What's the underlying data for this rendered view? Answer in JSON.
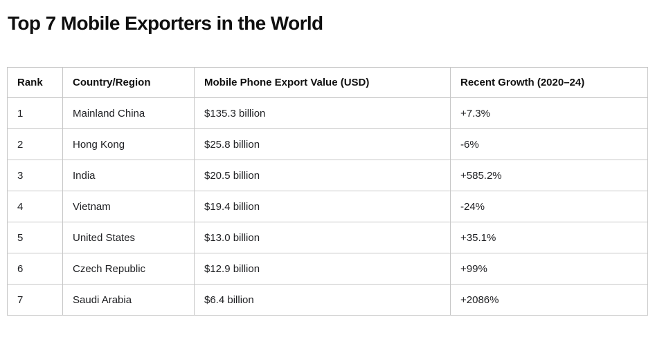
{
  "page": {
    "title": "Top 7 Mobile Exporters in the World",
    "background_color": "#ffffff",
    "title_color": "#0f0f0f"
  },
  "table": {
    "border_color": "#c7c7c7",
    "header_text_color": "#111111",
    "body_text_color": "#202124",
    "headers": [
      "Rank",
      "Country/Region",
      "Mobile Phone Export Value (USD)",
      "Recent Growth (2020–24)"
    ],
    "rows": [
      {
        "rank": "1",
        "country": "Mainland China",
        "export_value": "$135.3 billion",
        "growth": "+7.3%"
      },
      {
        "rank": "2",
        "country": "Hong Kong",
        "export_value": "$25.8 billion",
        "growth": "-6%"
      },
      {
        "rank": "3",
        "country": "India",
        "export_value": "$20.5 billion",
        "growth": "+585.2%"
      },
      {
        "rank": "4",
        "country": "Vietnam",
        "export_value": "$19.4 billion",
        "growth": "-24%"
      },
      {
        "rank": "5",
        "country": "United States",
        "export_value": "$13.0 billion",
        "growth": "+35.1%"
      },
      {
        "rank": "6",
        "country": "Czech Republic",
        "export_value": "$12.9 billion",
        "growth": "+99%"
      },
      {
        "rank": "7",
        "country": "Saudi Arabia",
        "export_value": "$6.4 billion",
        "growth": "+2086%"
      }
    ]
  },
  "chart_data": {
    "type": "table",
    "title": "Top 7 Mobile Exporters in the World",
    "columns": [
      "Rank",
      "Country/Region",
      "Mobile Phone Export Value (USD)",
      "Recent Growth (2020–24)"
    ],
    "rows": [
      [
        1,
        "Mainland China",
        "$135.3 billion",
        "+7.3%"
      ],
      [
        2,
        "Hong Kong",
        "$25.8 billion",
        "-6%"
      ],
      [
        3,
        "India",
        "$20.5 billion",
        "+585.2%"
      ],
      [
        4,
        "Vietnam",
        "$19.4 billion",
        "-24%"
      ],
      [
        5,
        "United States",
        "$13.0 billion",
        "+35.1%"
      ],
      [
        6,
        "Czech Republic",
        "$12.9 billion",
        "+99%"
      ],
      [
        7,
        "Saudi Arabia",
        "$6.4 billion",
        "+2086%"
      ]
    ],
    "export_value_billion_usd": [
      135.3,
      25.8,
      20.5,
      19.4,
      13.0,
      12.9,
      6.4
    ],
    "recent_growth_percent": [
      7.3,
      -6,
      585.2,
      -24,
      35.1,
      99,
      2086
    ]
  }
}
